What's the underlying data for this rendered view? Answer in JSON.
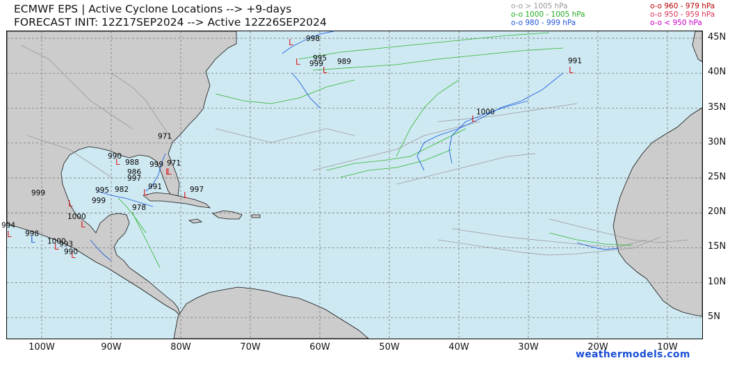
{
  "header": {
    "title_line1": "ECMWF EPS | Active Cyclone Locations --> +9-days",
    "title_line2": "FORECAST INIT: 12Z17SEP2024 --> Active 12Z26SEP2024"
  },
  "legend": {
    "left": [
      {
        "marker": "o-o",
        "label": "> 1005 hPa",
        "color": "#999999"
      },
      {
        "marker": "o-o",
        "label": "1000 - 1005 hPa",
        "color": "#22aa22"
      },
      {
        "marker": "o-o",
        "label": "980 - 999 hPa",
        "color": "#2255dd"
      }
    ],
    "right": [
      {
        "marker": "o-o",
        "label": "960 - 979 hPa",
        "color": "#b80000"
      },
      {
        "marker": "o-o",
        "label": "950 - 959 hPa",
        "color": "#dd3355"
      },
      {
        "marker": "o-o",
        "label": "< 950 hPa",
        "color": "#cc00cc"
      }
    ]
  },
  "map": {
    "lon_range": [
      -105,
      -5
    ],
    "lat_range": [
      2,
      46
    ],
    "ocean_color": "#cfe9f2",
    "land_color": "#cccccc",
    "grid_lons": [
      -100,
      -90,
      -80,
      -70,
      -60,
      -50,
      -40,
      -30,
      -20,
      -10
    ],
    "grid_lats": [
      5,
      10,
      15,
      20,
      25,
      30,
      35,
      40,
      45
    ],
    "lat_labels": [
      "45N",
      "40N",
      "35N",
      "30N",
      "25N",
      "20N",
      "15N",
      "10N",
      "5N"
    ],
    "lon_labels": [
      "100W",
      "90W",
      "80W",
      "70W",
      "60W",
      "50W",
      "40W",
      "30W",
      "20W",
      "10W"
    ],
    "pressure_labels": [
      {
        "text": "998",
        "lon": -62,
        "lat": 44.6
      },
      {
        "text": "995",
        "lon": -61,
        "lat": 41.8
      },
      {
        "text": "999",
        "lon": -61.5,
        "lat": 41.0
      },
      {
        "text": "989",
        "lon": -57.5,
        "lat": 41.3
      },
      {
        "text": "991",
        "lon": -24.3,
        "lat": 41.4
      },
      {
        "text": "1000",
        "lon": -37.5,
        "lat": 34.1
      },
      {
        "text": "971",
        "lon": -83.3,
        "lat": 30.6
      },
      {
        "text": "990",
        "lon": -90.5,
        "lat": 27.8
      },
      {
        "text": "988",
        "lon": -88,
        "lat": 26.9
      },
      {
        "text": "999",
        "lon": -84.5,
        "lat": 26.6
      },
      {
        "text": "971",
        "lon": -82.0,
        "lat": 26.8
      },
      {
        "text": "986",
        "lon": -87.7,
        "lat": 25.5
      },
      {
        "text": "997",
        "lon": -87.7,
        "lat": 24.6
      },
      {
        "text": "991",
        "lon": -84.7,
        "lat": 23.4
      },
      {
        "text": "997",
        "lon": -78.7,
        "lat": 23.0
      },
      {
        "text": "995",
        "lon": -92.3,
        "lat": 22.9
      },
      {
        "text": "982",
        "lon": -89.5,
        "lat": 23.0
      },
      {
        "text": "999",
        "lon": -101.5,
        "lat": 22.5
      },
      {
        "text": "999",
        "lon": -92.8,
        "lat": 21.4
      },
      {
        "text": "978",
        "lon": -87.0,
        "lat": 20.4
      },
      {
        "text": "1000",
        "lon": -96.3,
        "lat": 19.1
      },
      {
        "text": "994",
        "lon": -105.8,
        "lat": 17.9
      },
      {
        "text": "998",
        "lon": -102.4,
        "lat": 16.7
      },
      {
        "text": "1000",
        "lon": -99.2,
        "lat": 15.6
      },
      {
        "text": "993",
        "lon": -97.5,
        "lat": 15.2
      },
      {
        "text": "990",
        "lon": -96.8,
        "lat": 14.1
      }
    ]
  },
  "credit": "weathermodels.com"
}
